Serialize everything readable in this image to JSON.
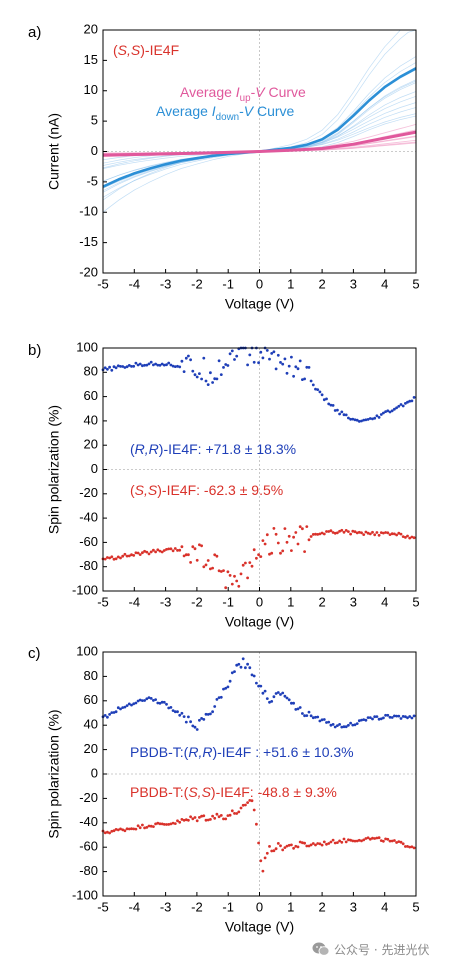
{
  "chart_data": [
    {
      "panel_label": "a)",
      "type": "line",
      "xlabel": "Voltage (V)",
      "ylabel": "Current (nA)",
      "xlim": [
        -5,
        5
      ],
      "ylim": [
        -20,
        20
      ],
      "xticks": [
        -5,
        -4,
        -3,
        -2,
        -1,
        0,
        1,
        2,
        3,
        4,
        5
      ],
      "yticks": [
        20,
        15,
        10,
        5,
        0,
        -5,
        -10,
        -15,
        -20
      ],
      "xtick_labels": [
        "-5",
        "-4",
        "-3",
        "-2",
        "-1",
        "0",
        "1",
        "2",
        "3",
        "4",
        "5"
      ],
      "ytick_labels": [
        "20",
        "15",
        "10",
        "5",
        "0",
        "-5",
        "-10",
        "-15",
        "-20"
      ],
      "grid": false,
      "annotations": [
        {
          "text": "(S,S)-IE4F",
          "color": "#d9322b"
        }
      ],
      "legend_lines": [
        {
          "pre": "Average ",
          "var": "I",
          "sub": "up",
          "post": "-",
          "var2": "V",
          "tail": " Curve",
          "color": "#e0589c"
        },
        {
          "pre": "Average ",
          "var": "I",
          "sub": "down",
          "post": "-",
          "var2": "V",
          "tail": " Curve",
          "color": "#2b8fd6"
        }
      ],
      "series": [
        {
          "role": "average-down",
          "color": "#2b8fd6",
          "x": [
            -5,
            -4.5,
            -4,
            -3.5,
            -3,
            -2.5,
            -2,
            -1.5,
            -1,
            -0.5,
            0,
            0.5,
            1,
            1.5,
            2,
            2.5,
            3,
            3.5,
            4,
            4.5,
            5
          ],
          "y": [
            -5.8,
            -4.6,
            -3.6,
            -2.8,
            -2.1,
            -1.5,
            -1.1,
            -0.7,
            -0.4,
            -0.2,
            0,
            0.3,
            0.6,
            1.1,
            2,
            3.6,
            5.9,
            8.4,
            10.6,
            12.3,
            13.7
          ]
        },
        {
          "role": "average-up",
          "color": "#e0589c",
          "x": [
            -5,
            -4,
            -3,
            -2,
            -1,
            0,
            1,
            2,
            3,
            4,
            5
          ],
          "y": [
            -0.6,
            -0.5,
            -0.4,
            -0.3,
            -0.15,
            0,
            0.2,
            0.5,
            1.2,
            2.2,
            3.2
          ]
        }
      ]
    },
    {
      "panel_label": "b)",
      "type": "scatter",
      "xlabel": "Voltage (V)",
      "ylabel": "Spin polarization (%)",
      "xlim": [
        -5,
        5
      ],
      "ylim": [
        -100,
        100
      ],
      "xticks": [
        -5,
        -4,
        -3,
        -2,
        -1,
        0,
        1,
        2,
        3,
        4,
        5
      ],
      "yticks": [
        100,
        80,
        60,
        40,
        20,
        0,
        -20,
        -40,
        -60,
        -80,
        -100
      ],
      "xtick_labels": [
        "-5",
        "-4",
        "-3",
        "-2",
        "-1",
        "0",
        "1",
        "2",
        "3",
        "4",
        "5"
      ],
      "ytick_labels": [
        "100",
        "80",
        "60",
        "40",
        "20",
        "0",
        "-20",
        "-40",
        "-60",
        "-80",
        "-100"
      ],
      "grid": false,
      "annotations": [
        {
          "pre": "(",
          "italic": "R,R",
          "post": ")-IE4F: +71.8 ± 18.3%",
          "color": "#1f3fb8"
        },
        {
          "pre": "(",
          "italic": "S,S",
          "post": ")-IE4F: -62.3 ± 9.5%",
          "color": "#d9322b"
        }
      ],
      "series": [
        {
          "color": "#1f3fb8",
          "x": [
            -5,
            -4.5,
            -4,
            -3.5,
            -3,
            -2.5,
            -2,
            -1.5,
            -1,
            -0.8,
            -0.5,
            0.3,
            0.5,
            1,
            1.5,
            2,
            2.5,
            3,
            3.5,
            4,
            4.5,
            5
          ],
          "y": [
            82,
            84,
            86,
            87,
            87,
            85,
            82,
            80,
            90,
            100,
            95,
            96,
            90,
            88,
            78,
            60,
            48,
            40,
            40,
            46,
            52,
            59
          ]
        },
        {
          "color": "#d9322b",
          "x": [
            -5,
            -4.5,
            -4,
            -3.5,
            -3,
            -2.5,
            -2,
            -1.5,
            -1,
            -0.8,
            -0.5,
            0.2,
            0.5,
            1,
            1.5,
            2,
            2.5,
            3,
            3.5,
            4,
            4.5,
            5
          ],
          "y": [
            -74,
            -72,
            -70,
            -68,
            -67,
            -66,
            -70,
            -78,
            -88,
            -96,
            -82,
            -62,
            -58,
            -58,
            -57,
            -52,
            -51,
            -52,
            -53,
            -53,
            -54,
            -56
          ]
        }
      ]
    },
    {
      "panel_label": "c)",
      "type": "scatter",
      "xlabel": "Voltage (V)",
      "ylabel": "Spin polarization (%)",
      "xlim": [
        -5,
        5
      ],
      "ylim": [
        -100,
        100
      ],
      "xticks": [
        -5,
        -4,
        -3,
        -2,
        -1,
        0,
        1,
        2,
        3,
        4,
        5
      ],
      "yticks": [
        100,
        80,
        60,
        40,
        20,
        0,
        -20,
        -40,
        -60,
        -80,
        -100
      ],
      "xtick_labels": [
        "-5",
        "-4",
        "-3",
        "-2",
        "-1",
        "0",
        "1",
        "2",
        "3",
        "4",
        "5"
      ],
      "ytick_labels": [
        "100",
        "80",
        "60",
        "40",
        "20",
        "0",
        "-20",
        "-40",
        "-60",
        "-80",
        "-100"
      ],
      "grid": false,
      "annotations": [
        {
          "pre": "PBDB-T:(",
          "italic": "R,R",
          "post": ")-IE4F : +51.6 ± 10.3%",
          "color": "#1f3fb8"
        },
        {
          "pre": "PBDB-T:(",
          "italic": "S,S",
          "post": ")-IE4F: -48.8 ± 9.3%",
          "color": "#d9322b"
        }
      ],
      "series": [
        {
          "color": "#1f3fb8",
          "x": [
            -5,
            -4.5,
            -4,
            -3.5,
            -3,
            -2.5,
            -2,
            -1.5,
            -1,
            -0.7,
            -0.5,
            0.4,
            0.6,
            0.8,
            1,
            1.2,
            1.5,
            2,
            2.5,
            3,
            3.5,
            4,
            4.5,
            5
          ],
          "y": [
            46,
            53,
            59,
            62,
            57,
            48,
            39,
            52,
            74,
            88,
            92,
            58,
            68,
            67,
            60,
            54,
            50,
            44,
            39,
            41,
            45,
            47,
            47,
            47
          ]
        },
        {
          "color": "#d9322b",
          "x": [
            -5,
            -4.5,
            -4,
            -3.5,
            -3,
            -2.5,
            -2,
            -1.5,
            -1,
            -0.5,
            -0.2,
            0.1,
            0.15,
            0.3,
            0.5,
            1,
            1.5,
            2,
            2.5,
            3,
            3.5,
            4,
            4.5,
            5
          ],
          "y": [
            -48,
            -46,
            -44,
            -42,
            -41,
            -39,
            -36,
            -35,
            -34,
            -28,
            -22,
            -82,
            -70,
            -62,
            -60,
            -59,
            -58,
            -57,
            -55,
            -54,
            -53,
            -54,
            -57,
            -60
          ]
        }
      ]
    }
  ],
  "watermark": {
    "text": "公众号 · 先进光伏",
    "icon": "wechat-icon"
  }
}
